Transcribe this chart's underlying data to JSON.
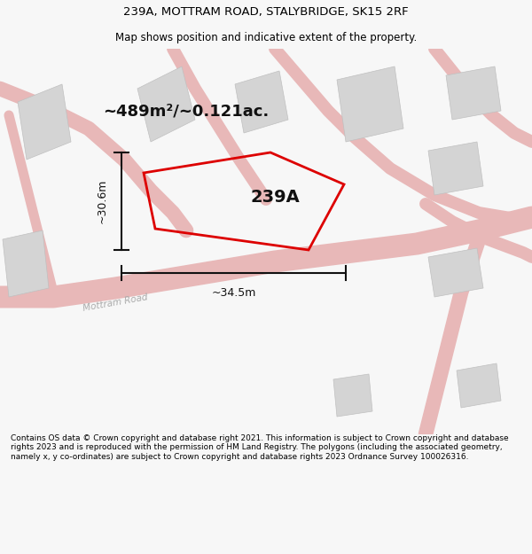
{
  "title_line1": "239A, MOTTRAM ROAD, STALYBRIDGE, SK15 2RF",
  "title_line2": "Map shows position and indicative extent of the property.",
  "footer_text": "Contains OS data © Crown copyright and database right 2021. This information is subject to Crown copyright and database rights 2023 and is reproduced with the permission of HM Land Registry. The polygons (including the associated geometry, namely x, y co-ordinates) are subject to Crown copyright and database rights 2023 Ordnance Survey 100026316.",
  "area_label": "~489m²/~0.121ac.",
  "width_label": "~34.5m",
  "height_label": "~30.6m",
  "plot_label": "239A",
  "road_label": "Mottram Road",
  "bg_color": "#f7f7f7",
  "map_bg": "#ffffff",
  "road_color": "#e8b8b8",
  "building_color": "#d4d4d4",
  "plot_edge_color": "#dd0000",
  "dim_color": "#111111",
  "road_label_color": "#aaaaaa",
  "title_fontsize": 9.5,
  "subtitle_fontsize": 8.5,
  "footer_fontsize": 6.5
}
